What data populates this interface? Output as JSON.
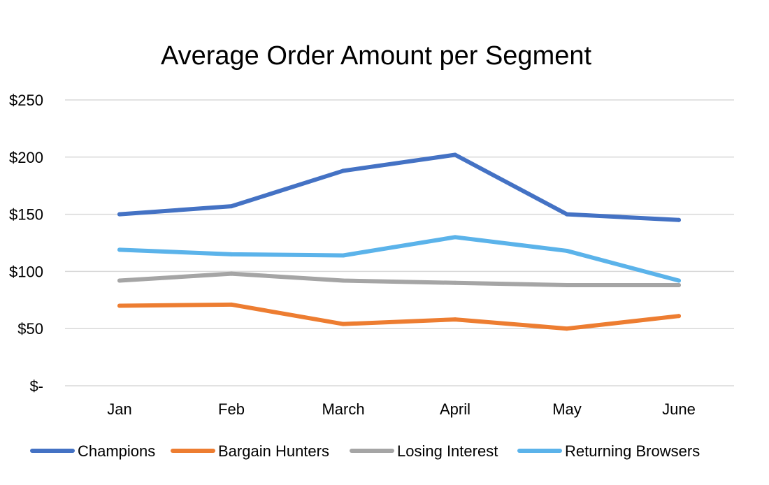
{
  "chart_data": {
    "type": "line",
    "title": "Average Order Amount per Segment",
    "xlabel": "",
    "ylabel": "",
    "categories": [
      "Jan",
      "Feb",
      "March",
      "April",
      "May",
      "June"
    ],
    "ylim": [
      0,
      250
    ],
    "yticks": [
      0,
      50,
      100,
      150,
      200,
      250
    ],
    "ytick_labels": [
      "$-",
      "$50",
      "$100",
      "$150",
      "$200",
      "$250"
    ],
    "grid": true,
    "legend_position": "bottom",
    "series": [
      {
        "name": "Champions",
        "color": "#4472c4",
        "values": [
          150,
          157,
          188,
          202,
          150,
          145
        ]
      },
      {
        "name": "Bargain Hunters",
        "color": "#ed7d31",
        "values": [
          70,
          71,
          54,
          58,
          50,
          61
        ]
      },
      {
        "name": "Losing Interest",
        "color": "#a5a5a5",
        "values": [
          92,
          98,
          92,
          90,
          88,
          88
        ]
      },
      {
        "name": "Returning Browsers",
        "color": "#5bb3ea",
        "values": [
          119,
          115,
          114,
          130,
          118,
          92
        ]
      }
    ]
  }
}
